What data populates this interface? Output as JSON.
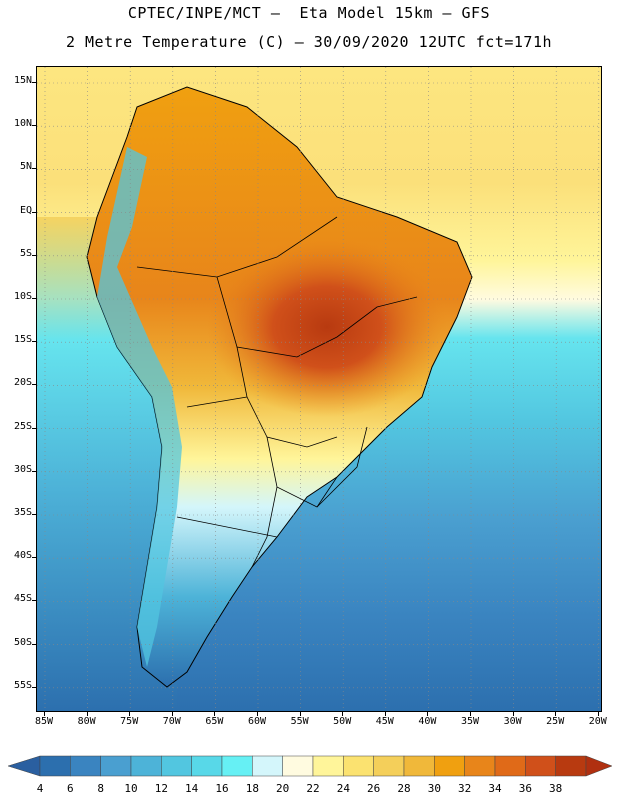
{
  "title": {
    "line1": "CPTEC/INPE/MCT –  Eta Model 15km – GFS",
    "line2": "2 Metre Temperature (C) – 30/09/2020 12UTC fct=171h"
  },
  "map": {
    "variable": "2 Metre Temperature (C)",
    "region": "South America",
    "latitude_labels": [
      "15N",
      "10N",
      "5N",
      "EQ",
      "5S",
      "10S",
      "15S",
      "20S",
      "25S",
      "30S",
      "35S",
      "40S",
      "45S",
      "50S",
      "55S"
    ],
    "longitude_labels": [
      "85W",
      "80W",
      "75W",
      "70W",
      "65W",
      "60W",
      "55W",
      "50W",
      "45W",
      "40W",
      "35W",
      "30W",
      "25W",
      "20W"
    ],
    "gridlines": true,
    "ocean_color": "#3a90c4",
    "land_outline_color": "#000000"
  },
  "colorbar": {
    "labels": [
      "4",
      "6",
      "8",
      "10",
      "12",
      "14",
      "16",
      "18",
      "20",
      "22",
      "24",
      "26",
      "28",
      "30",
      "32",
      "34",
      "36",
      "38"
    ],
    "colors": [
      "#2c6fae",
      "#3a84c0",
      "#4a9fd0",
      "#4db3d8",
      "#52c6e0",
      "#58d8e8",
      "#66f0f4",
      "#d4f6fb",
      "#fffbe0",
      "#fff59a",
      "#fbe270",
      "#f4cf5a",
      "#f0b83a",
      "#f0a010",
      "#e8851a",
      "#e06a18",
      "#d0501a",
      "#b83a10"
    ],
    "under_color": "#2a5fa0",
    "over_color": "#b03010"
  }
}
